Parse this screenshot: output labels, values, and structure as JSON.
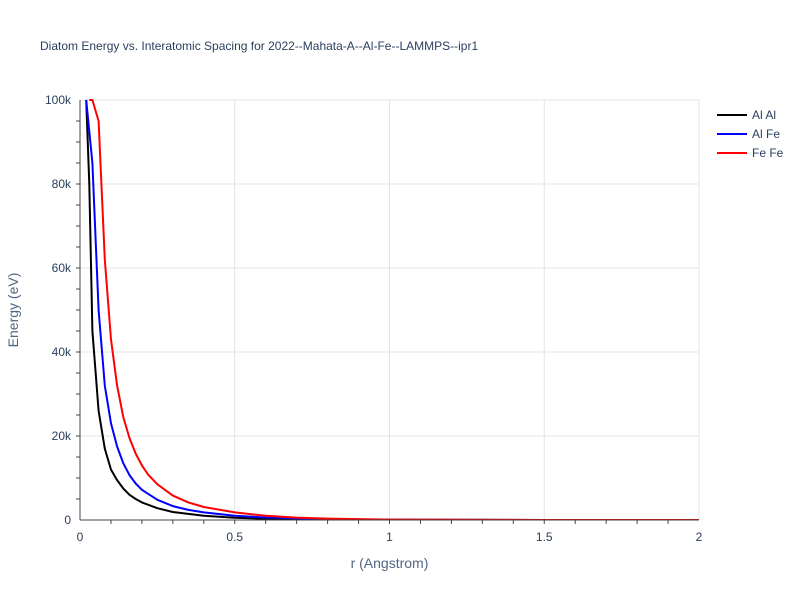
{
  "chart_data": {
    "type": "line",
    "title": "Diatom Energy vs. Interatomic Spacing for 2022--Mahata-A--Al-Fe--LAMMPS--ipr1",
    "xlabel": "r (Angstrom)",
    "ylabel": "Energy (eV)",
    "xlim": [
      0,
      2
    ],
    "ylim": [
      0,
      100000
    ],
    "x_ticks": [
      0,
      0.5,
      1,
      1.5,
      2
    ],
    "x_tick_labels": [
      "0",
      "0.5",
      "1",
      "1.5",
      "2"
    ],
    "y_ticks": [
      0,
      20000,
      40000,
      60000,
      80000,
      100000
    ],
    "y_tick_labels": [
      "0",
      "20k",
      "40k",
      "60k",
      "80k",
      "100k"
    ],
    "grid": true,
    "legend_position": "top-right",
    "series": [
      {
        "name": "Al Al",
        "color": "#000000",
        "x": [
          0.02,
          0.03,
          0.04,
          0.06,
          0.08,
          0.1,
          0.12,
          0.14,
          0.16,
          0.18,
          0.2,
          0.25,
          0.3,
          0.4,
          0.5,
          0.6,
          0.8,
          1.0,
          1.5,
          2.0
        ],
        "y": [
          100000,
          80000,
          45000,
          26000,
          17000,
          12000,
          9500,
          7500,
          6000,
          5000,
          4200,
          2800,
          1900,
          1000,
          550,
          300,
          120,
          50,
          10,
          0
        ]
      },
      {
        "name": "Al Fe",
        "color": "#0000ff",
        "x": [
          0.02,
          0.04,
          0.06,
          0.08,
          0.1,
          0.12,
          0.14,
          0.16,
          0.18,
          0.2,
          0.25,
          0.3,
          0.35,
          0.4,
          0.5,
          0.6,
          0.8,
          1.0,
          1.5,
          2.0
        ],
        "y": [
          100000,
          85000,
          50000,
          32000,
          23000,
          17500,
          13500,
          10700,
          8700,
          7200,
          4800,
          3300,
          2400,
          1800,
          1000,
          600,
          220,
          80,
          10,
          0
        ]
      },
      {
        "name": "Fe Fe",
        "color": "#ff0000",
        "x": [
          0.03,
          0.04,
          0.06,
          0.08,
          0.1,
          0.12,
          0.14,
          0.16,
          0.18,
          0.2,
          0.22,
          0.25,
          0.3,
          0.35,
          0.4,
          0.5,
          0.6,
          0.7,
          0.8,
          1.0,
          1.5,
          2.0
        ],
        "y": [
          100000,
          100000,
          95000,
          62000,
          43000,
          32000,
          24500,
          19500,
          15800,
          13000,
          10800,
          8500,
          5800,
          4200,
          3100,
          1800,
          1000,
          580,
          330,
          100,
          10,
          0
        ]
      }
    ]
  }
}
